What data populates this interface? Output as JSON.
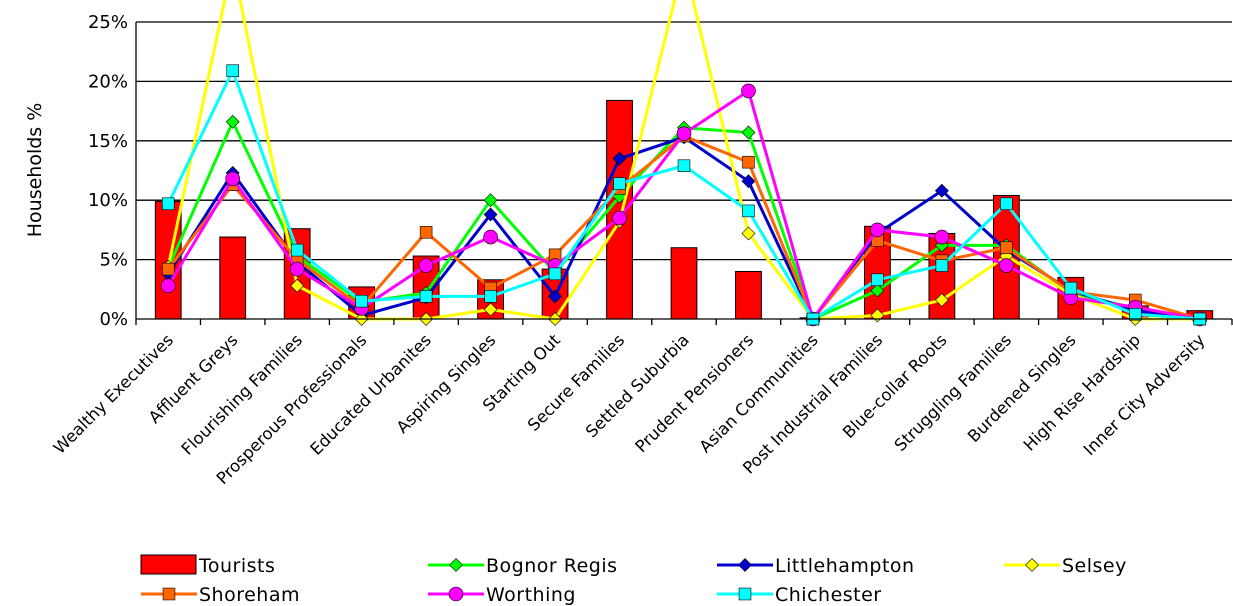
{
  "chart_data": {
    "type": "bar+line",
    "ylabel": "Households %",
    "ylim": [
      0,
      25
    ],
    "yticks": [
      "0%",
      "5%",
      "10%",
      "15%",
      "20%",
      "25%"
    ],
    "grid": "horizontal",
    "legend_position": "bottom",
    "categories": [
      "Wealthy Executives",
      "Affluent Greys",
      "Flourishing Families",
      "Prosperous Professionals",
      "Educated Urbanites",
      "Aspiring Singles",
      "Starting Out",
      "Secure Families",
      "Settled Suburbia",
      "Prudent Pensioners",
      "Asian Communities",
      "Post Industrial Families",
      "Blue-collar Roots",
      "Struggling Families",
      "Burdened Singles",
      "High Rise Hardship",
      "Inner City Adversity"
    ],
    "bar_series": {
      "name": "Tourists",
      "color": "#ff0000",
      "values": [
        9.9,
        6.9,
        7.6,
        2.7,
        5.3,
        3.3,
        4.2,
        18.4,
        6.0,
        4.0,
        0.1,
        7.8,
        7.2,
        10.4,
        3.5,
        1.1,
        0.7
      ]
    },
    "line_series": [
      {
        "name": "Bognor Regis",
        "color": "#00ff00",
        "marker": "diamond",
        "values": [
          4.3,
          16.6,
          5.3,
          1.4,
          2.2,
          10.0,
          3.9,
          10.3,
          16.1,
          15.7,
          0.0,
          2.4,
          6.2,
          6.2,
          2.2,
          0.9,
          0.0
        ]
      },
      {
        "name": "Littlehampton",
        "color": "#0000cc",
        "marker": "diamond",
        "values": [
          3.8,
          12.3,
          4.8,
          0.3,
          1.8,
          8.8,
          1.9,
          13.5,
          15.3,
          11.6,
          0.0,
          7.2,
          10.8,
          5.8,
          2.4,
          0.7,
          0.0
        ]
      },
      {
        "name": "Selsey",
        "color": "#ffff00",
        "marker": "diamond",
        "values": [
          4.4,
          30.0,
          2.8,
          0.0,
          0.0,
          0.8,
          0.0,
          8.2,
          30.0,
          7.2,
          0.0,
          0.3,
          1.6,
          5.3,
          2.1,
          0.0,
          0.0
        ]
      },
      {
        "name": "Shoreham",
        "color": "#ff6600",
        "marker": "square",
        "values": [
          4.2,
          11.3,
          5.0,
          1.0,
          7.3,
          2.6,
          5.4,
          11.0,
          15.4,
          13.2,
          0.0,
          6.6,
          4.9,
          6.0,
          2.3,
          1.6,
          0.0
        ]
      },
      {
        "name": "Worthing",
        "color": "#ff00ff",
        "marker": "circle",
        "values": [
          2.8,
          11.8,
          4.2,
          0.9,
          4.5,
          6.9,
          4.5,
          8.5,
          15.6,
          19.2,
          0.0,
          7.5,
          6.9,
          4.5,
          1.8,
          1.0,
          0.0
        ]
      },
      {
        "name": "Chichester",
        "color": "#00ffff",
        "marker": "square",
        "values": [
          9.7,
          20.9,
          5.8,
          1.5,
          1.9,
          1.9,
          3.8,
          11.4,
          12.9,
          9.1,
          0.0,
          3.3,
          4.5,
          9.7,
          2.6,
          0.4,
          0.0
        ]
      }
    ]
  }
}
